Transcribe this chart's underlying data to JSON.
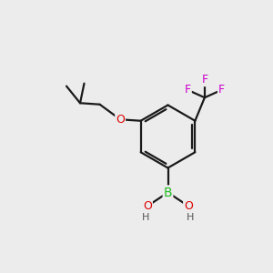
{
  "background_color": "#ececec",
  "bond_color": "#1a1a1a",
  "atom_colors": {
    "C": "#1a1a1a",
    "O": "#dd0000",
    "B": "#22bb22",
    "F": "#cc00cc",
    "H": "#555555"
  },
  "figsize": [
    3.0,
    3.0
  ],
  "dpi": 100
}
